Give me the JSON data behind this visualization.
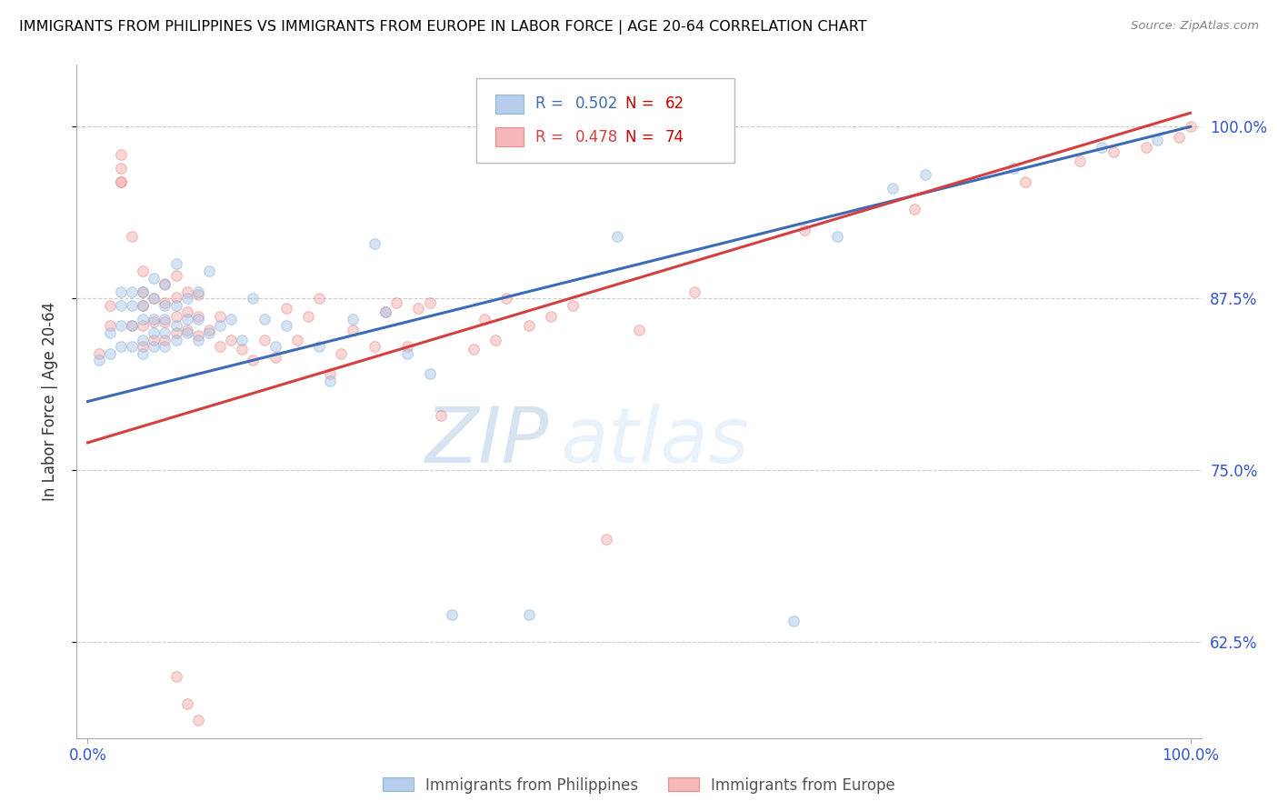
{
  "title": "IMMIGRANTS FROM PHILIPPINES VS IMMIGRANTS FROM EUROPE IN LABOR FORCE | AGE 20-64 CORRELATION CHART",
  "source": "Source: ZipAtlas.com",
  "ylabel": "In Labor Force | Age 20-64",
  "ytick_labels": [
    "62.5%",
    "75.0%",
    "87.5%",
    "100.0%"
  ],
  "ytick_values": [
    0.625,
    0.75,
    0.875,
    1.0
  ],
  "xlim": [
    -0.01,
    1.01
  ],
  "ylim": [
    0.555,
    1.045
  ],
  "blue_R": 0.502,
  "blue_N": 62,
  "pink_R": 0.478,
  "pink_N": 74,
  "blue_label": "Immigrants from Philippines",
  "pink_label": "Immigrants from Europe",
  "blue_color": "#a4c2e8",
  "pink_color": "#f4a7a7",
  "blue_edge_color": "#7baad4",
  "pink_edge_color": "#e87979",
  "blue_line_color": "#3d6bb5",
  "pink_line_color": "#d44040",
  "legend_blue_color": "#3d6bb5",
  "legend_pink_color": "#d44040",
  "legend_N_color": "#cc0000",
  "watermark_zip": "ZIP",
  "watermark_atlas": "atlas",
  "blue_scatter_x": [
    0.01,
    0.02,
    0.02,
    0.03,
    0.03,
    0.03,
    0.03,
    0.04,
    0.04,
    0.04,
    0.04,
    0.05,
    0.05,
    0.05,
    0.05,
    0.05,
    0.06,
    0.06,
    0.06,
    0.06,
    0.06,
    0.07,
    0.07,
    0.07,
    0.07,
    0.07,
    0.08,
    0.08,
    0.08,
    0.08,
    0.09,
    0.09,
    0.09,
    0.1,
    0.1,
    0.1,
    0.11,
    0.11,
    0.12,
    0.13,
    0.14,
    0.15,
    0.16,
    0.17,
    0.18,
    0.21,
    0.22,
    0.24,
    0.26,
    0.27,
    0.29,
    0.31,
    0.33,
    0.4,
    0.48,
    0.64,
    0.68,
    0.73,
    0.76,
    0.84,
    0.92,
    0.97
  ],
  "blue_scatter_y": [
    0.83,
    0.835,
    0.85,
    0.84,
    0.855,
    0.87,
    0.88,
    0.84,
    0.855,
    0.87,
    0.88,
    0.835,
    0.845,
    0.86,
    0.87,
    0.88,
    0.84,
    0.85,
    0.86,
    0.875,
    0.89,
    0.84,
    0.85,
    0.86,
    0.87,
    0.885,
    0.845,
    0.855,
    0.87,
    0.9,
    0.85,
    0.86,
    0.875,
    0.845,
    0.86,
    0.88,
    0.85,
    0.895,
    0.855,
    0.86,
    0.845,
    0.875,
    0.86,
    0.84,
    0.855,
    0.84,
    0.815,
    0.86,
    0.915,
    0.865,
    0.835,
    0.82,
    0.645,
    0.645,
    0.92,
    0.64,
    0.92,
    0.955,
    0.965,
    0.97,
    0.985,
    0.99
  ],
  "pink_scatter_x": [
    0.01,
    0.02,
    0.02,
    0.03,
    0.03,
    0.03,
    0.03,
    0.04,
    0.04,
    0.05,
    0.05,
    0.05,
    0.05,
    0.05,
    0.06,
    0.06,
    0.06,
    0.07,
    0.07,
    0.07,
    0.07,
    0.08,
    0.08,
    0.08,
    0.08,
    0.09,
    0.09,
    0.09,
    0.1,
    0.1,
    0.1,
    0.11,
    0.12,
    0.12,
    0.13,
    0.14,
    0.15,
    0.16,
    0.17,
    0.18,
    0.19,
    0.2,
    0.21,
    0.22,
    0.23,
    0.24,
    0.26,
    0.27,
    0.28,
    0.29,
    0.3,
    0.31,
    0.32,
    0.35,
    0.36,
    0.37,
    0.38,
    0.4,
    0.42,
    0.44,
    0.47,
    0.5,
    0.55,
    0.65,
    0.75,
    0.85,
    0.9,
    0.93,
    0.96,
    0.99,
    1.0,
    0.08,
    0.09,
    0.1
  ],
  "pink_scatter_y": [
    0.835,
    0.855,
    0.87,
    0.96,
    0.97,
    0.98,
    0.96,
    0.855,
    0.92,
    0.84,
    0.855,
    0.87,
    0.88,
    0.895,
    0.845,
    0.858,
    0.875,
    0.845,
    0.858,
    0.872,
    0.886,
    0.85,
    0.862,
    0.876,
    0.892,
    0.852,
    0.865,
    0.88,
    0.848,
    0.862,
    0.878,
    0.852,
    0.84,
    0.862,
    0.845,
    0.838,
    0.83,
    0.845,
    0.832,
    0.868,
    0.845,
    0.862,
    0.875,
    0.82,
    0.835,
    0.852,
    0.84,
    0.865,
    0.872,
    0.84,
    0.868,
    0.872,
    0.79,
    0.838,
    0.86,
    0.845,
    0.875,
    0.855,
    0.862,
    0.87,
    0.7,
    0.852,
    0.88,
    0.925,
    0.94,
    0.96,
    0.975,
    0.982,
    0.985,
    0.992,
    1.0,
    0.6,
    0.58,
    0.568
  ],
  "blue_line_x0": 0.0,
  "blue_line_x1": 1.0,
  "blue_line_y0": 0.8,
  "blue_line_y1": 1.0,
  "pink_line_x0": 0.0,
  "pink_line_x1": 1.0,
  "pink_line_y0": 0.77,
  "pink_line_y1": 1.01,
  "grid_color": "#cccccc",
  "bg_color": "#ffffff",
  "title_color": "#000000",
  "axis_color": "#3355cc",
  "marker_size": 70,
  "marker_alpha": 0.45,
  "line_width": 2.2
}
